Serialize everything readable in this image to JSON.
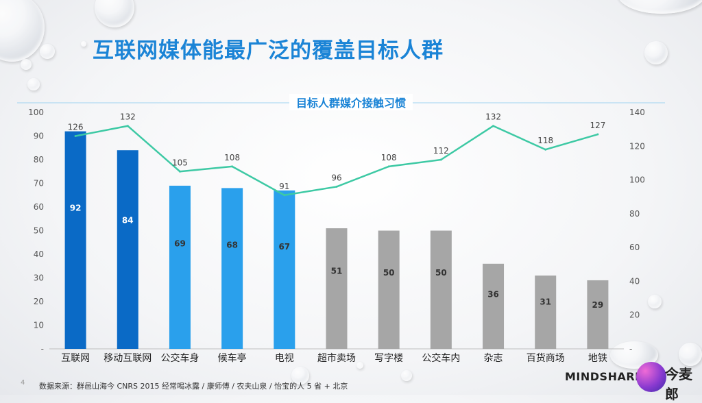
{
  "title": "互联网媒体能最广泛的覆盖目标人群",
  "chart_title": "目标人群媒介接触习惯",
  "source": "数据来源：群邑山海今   CNRS  2015   经常喝冰露 / 康师傅 / 农夫山泉 / 怡宝的人     5 省 + 北京",
  "page_number": "4",
  "brand": "MINDSHARE",
  "logo_text": "今麦郎",
  "colors": {
    "title": "#1b84d6",
    "bar_dark_blue": "#0a6ac6",
    "bar_light_blue": "#2aa0ec",
    "bar_gray": "#a6a6a6",
    "line": "#3dc9a4"
  },
  "chart_data": {
    "type": "bar",
    "title": "目标人群媒介接触习惯",
    "categories": [
      "互联网",
      "移动互联网",
      "公交车身",
      "候车亭",
      "电视",
      "超市卖场",
      "写字楼",
      "公交车内",
      "杂志",
      "百货商场",
      "地铁"
    ],
    "series": [
      {
        "type": "bar",
        "axis": "left",
        "values": [
          92,
          84,
          69,
          68,
          67,
          51,
          50,
          50,
          36,
          31,
          29
        ],
        "bar_colors": [
          "#0a6ac6",
          "#0a6ac6",
          "#2aa0ec",
          "#2aa0ec",
          "#2aa0ec",
          "#a6a6a6",
          "#a6a6a6",
          "#a6a6a6",
          "#a6a6a6",
          "#a6a6a6",
          "#a6a6a6"
        ]
      },
      {
        "type": "line",
        "axis": "right",
        "values": [
          126,
          132,
          105,
          108,
          91,
          96,
          108,
          112,
          132,
          118,
          127
        ],
        "color": "#3dc9a4"
      }
    ],
    "y_left": {
      "min": 0,
      "max": 100,
      "ticks": [
        "-",
        "10",
        "20",
        "30",
        "40",
        "50",
        "60",
        "70",
        "80",
        "90",
        "100"
      ]
    },
    "y_right": {
      "min": 0,
      "max": 140,
      "ticks": [
        "-",
        "20",
        "40",
        "60",
        "80",
        "100",
        "120",
        "140"
      ]
    },
    "grid": false,
    "legend": "none"
  }
}
